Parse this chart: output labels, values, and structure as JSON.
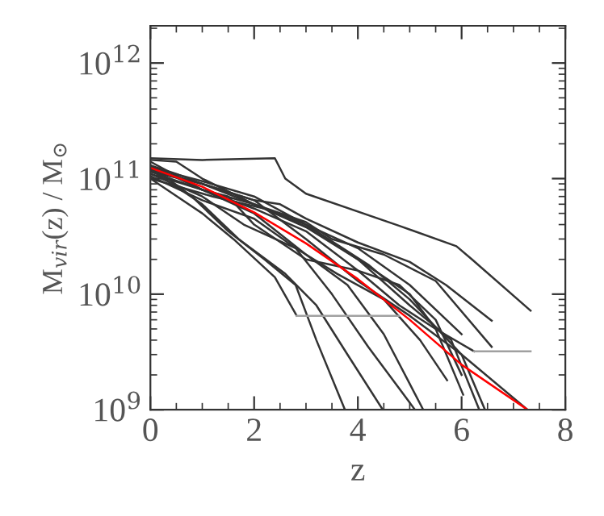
{
  "chart_data": {
    "type": "line",
    "xlabel": "z",
    "ylabel": "M$_{vir}$(z) / M$_{⊙}$",
    "log": "y",
    "grid": false,
    "marker": "none",
    "line_style": "solid",
    "xlim": [
      0,
      8
    ],
    "xticks": [
      0,
      2,
      4,
      6,
      8
    ],
    "ylim": [
      1000000000.0,
      2100000000000.0
    ],
    "yticks": [
      {
        "value": 1000000000.0,
        "label": "10$^{9}$"
      },
      {
        "value": 10000000000.0,
        "label": "10$^{10}$"
      },
      {
        "value": 100000000000.0,
        "label": "10$^{11}$"
      },
      {
        "value": 1000000000000.0,
        "label": "10$^{12}$"
      }
    ],
    "series": [
      {
        "color": "#333333",
        "x": [
          0,
          1.0,
          2.4,
          2.6,
          3,
          4.8,
          5.9,
          6.2,
          7.33
        ],
        "values": [
          150000000000.0,
          145000000000.0,
          150000000000.0,
          100000000000.0,
          74000000000.0,
          39000000000.0,
          26000000000.0,
          20000000000.0,
          7200000000.0
        ]
      },
      {
        "color": "#333333",
        "x": [
          0,
          0.5,
          1,
          2,
          2.5,
          3,
          4,
          5,
          5.7,
          6.58
        ],
        "values": [
          130000000000.0,
          110000000000.0,
          90000000000.0,
          65000000000.0,
          60000000000.0,
          45000000000.0,
          28000000000.0,
          19000000000.0,
          12000000000.0,
          5900000000.0
        ]
      },
      {
        "color": "#333333",
        "x": [
          0,
          1,
          2,
          3,
          3.5,
          4.5,
          5.5,
          6.58
        ],
        "values": [
          120000000000.0,
          90000000000.0,
          60000000000.0,
          42000000000.0,
          30000000000.0,
          22000000000.0,
          13000000000.0,
          3500000000.0
        ]
      },
      {
        "color": "#333333",
        "x": [
          0,
          1,
          2,
          3,
          4,
          4.8,
          5.5,
          6.24
        ],
        "values": [
          110000000000.0,
          80000000000.0,
          55000000000.0,
          35000000000.0,
          16000000000.0,
          8000000000.0,
          5000000000.0,
          3200000000.0
        ]
      },
      {
        "color": "#a0a0a0",
        "x": [
          6.24,
          7.33
        ],
        "values": [
          3200000000.0,
          3200000000.0
        ]
      },
      {
        "color": "#333333",
        "x": [
          0,
          1,
          2,
          3,
          4,
          5,
          5.5,
          6.03
        ],
        "values": [
          140000000000.0,
          80000000000.0,
          60000000000.0,
          38000000000.0,
          20000000000.0,
          10000000000.0,
          5000000000.0,
          1350000000.0
        ]
      },
      {
        "color": "#333333",
        "x": [
          0,
          1,
          1.8,
          2.8,
          3.6,
          4.5,
          5.2,
          5.72
        ],
        "values": [
          110000000000.0,
          70000000000.0,
          40000000000.0,
          25000000000.0,
          15000000000.0,
          9000000000.0,
          4000000000.0,
          1800000000.0
        ]
      },
      {
        "color": "#333333",
        "x": [
          0,
          1,
          2,
          3,
          4,
          5,
          5.8,
          6.34
        ],
        "values": [
          125000000000.0,
          95000000000.0,
          70000000000.0,
          40000000000.0,
          20000000000.0,
          8000000000.0,
          4000000000.0,
          1000000000.0
        ]
      },
      {
        "color": "#333333",
        "x": [
          0,
          1.2,
          2.2,
          3.2,
          4.2,
          5,
          6,
          6.45
        ],
        "values": [
          100000000000.0,
          70000000000.0,
          55000000000.0,
          35000000000.0,
          18000000000.0,
          9000000000.0,
          3000000000.0,
          1000000000.0
        ]
      },
      {
        "color": "#333333",
        "x": [
          0,
          1,
          2,
          3,
          4,
          5,
          6,
          7.27
        ],
        "values": [
          115000000000.0,
          90000000000.0,
          65000000000.0,
          30000000000.0,
          13000000000.0,
          6500000000.0,
          3000000000.0,
          1000000000.0
        ]
      },
      {
        "color": "#333333",
        "x": [
          0,
          0.8,
          1.5,
          2.2,
          2.8,
          3.2,
          3.75
        ],
        "values": [
          130000000000.0,
          70000000000.0,
          35000000000.0,
          20000000000.0,
          12000000000.0,
          4000000000.0,
          1000000000.0
        ]
      },
      {
        "color": "#333333",
        "x": [
          0,
          1,
          1.7,
          2.6,
          3.2,
          3.8,
          4.48
        ],
        "values": [
          120000000000.0,
          60000000000.0,
          30000000000.0,
          15000000000.0,
          8000000000.0,
          3000000000.0,
          1000000000.0
        ]
      },
      {
        "color": "#333333",
        "x": [
          0,
          1,
          2,
          2.8,
          3.5,
          4.2,
          5.1
        ],
        "values": [
          105000000000.0,
          65000000000.0,
          45000000000.0,
          25000000000.0,
          10000000000.0,
          3500000000.0,
          1000000000.0
        ]
      },
      {
        "color": "#333333",
        "x": [
          0,
          1,
          2,
          3,
          3.8,
          4.5,
          5.26
        ],
        "values": [
          130000000000.0,
          80000000000.0,
          50000000000.0,
          22000000000.0,
          12000000000.0,
          4500000000.0,
          1000000000.0
        ]
      },
      {
        "color": "#333333",
        "x": [
          0,
          1,
          1.6,
          2.4,
          2.82
        ],
        "values": [
          100000000000.0,
          50000000000.0,
          30000000000.0,
          14000000000.0,
          6500000000.0
        ]
      },
      {
        "color": "#a0a0a0",
        "x": [
          2.82,
          4.79
        ],
        "values": [
          6500000000.0,
          6500000000.0
        ]
      },
      {
        "color": "#333333",
        "x": [
          0,
          1,
          1.5,
          2,
          3,
          4,
          4.8,
          5.5,
          6.0
        ],
        "values": [
          115000000000.0,
          80000000000.0,
          70000000000.0,
          40000000000.0,
          20000000000.0,
          16000000000.0,
          12000000000.0,
          6000000000.0,
          2000000000.0
        ]
      },
      {
        "color": "#333333",
        "x": [
          0,
          0.5,
          1,
          2,
          3,
          4,
          5,
          6
        ],
        "values": [
          145000000000.0,
          140000000000.0,
          100000000000.0,
          60000000000.0,
          40000000000.0,
          25000000000.0,
          12000000000.0,
          4500000000.0
        ]
      },
      {
        "color": "#ff0000",
        "x": [
          0,
          1,
          2,
          3,
          4,
          5,
          6,
          7.27
        ],
        "values": [
          124000000000.0,
          85000000000.0,
          51000000000.0,
          27500000000.0,
          13500000000.0,
          6000000000.0,
          2450000000.0,
          1000000000.0
        ]
      }
    ]
  }
}
